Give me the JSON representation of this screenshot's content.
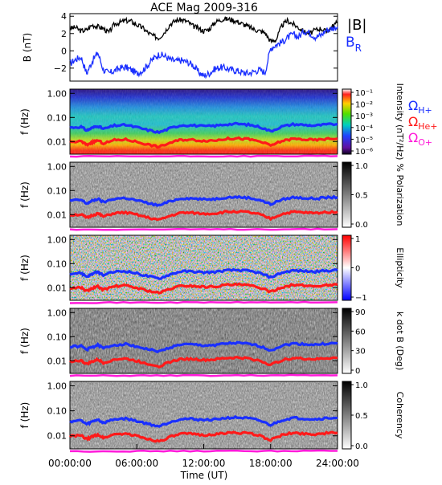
{
  "page_title": "ACE Mag 2009-316",
  "colors": {
    "btotal": "#000000",
    "bradial": "#1a2fff",
    "h_plus": "#1a2fff",
    "he_plus": "#ff1a1a",
    "o_plus": "#ff1ad9"
  },
  "chart_data": [
    {
      "type": "line",
      "panel": "b-field",
      "ylabel": "B (nT)",
      "ylim": [
        -3.5,
        4.3
      ],
      "yticks": [
        -2,
        0,
        2,
        4
      ],
      "series": [
        {
          "name": "|B|",
          "x_hours": [
            0,
            0.5,
            1,
            1.5,
            2,
            2.5,
            3,
            3.5,
            4,
            4.5,
            5,
            5.5,
            6,
            6.5,
            7,
            7.5,
            8,
            8.5,
            9,
            9.5,
            10,
            10.5,
            11,
            11.5,
            12,
            12.5,
            13,
            13.5,
            14,
            14.5,
            15,
            15.5,
            16,
            16.5,
            17,
            17.5,
            18,
            18.5,
            19,
            19.5,
            20,
            20.5,
            21,
            21.5,
            22,
            22.5,
            23,
            23.5,
            24
          ],
          "values": [
            2.6,
            2.7,
            2.3,
            2.4,
            3.0,
            2.8,
            2.6,
            2.1,
            3.1,
            3.3,
            3.5,
            3.4,
            3.0,
            2.7,
            2.1,
            1.7,
            1.5,
            2.2,
            3.1,
            3.5,
            3.6,
            3.4,
            2.9,
            2.6,
            2.3,
            2.5,
            3.3,
            3.6,
            3.7,
            3.6,
            3.4,
            3.1,
            2.8,
            2.5,
            2.3,
            2.1,
            1.1,
            1.3,
            2.9,
            3.5,
            3.1,
            2.7,
            2.2,
            2.0,
            2.4,
            2.6,
            2.2,
            2.8,
            3.3
          ]
        },
        {
          "name": "BR",
          "x_hours": [
            0,
            0.5,
            1,
            1.5,
            2,
            2.5,
            3,
            3.5,
            4,
            4.5,
            5,
            5.5,
            6,
            6.5,
            7,
            7.5,
            8,
            8.5,
            9,
            9.5,
            10,
            10.5,
            11,
            11.5,
            12,
            12.5,
            13,
            13.5,
            14,
            14.5,
            15,
            15.5,
            16,
            16.5,
            17,
            17.5,
            18,
            18.5,
            19,
            19.5,
            20,
            20.5,
            21,
            21.5,
            22,
            22.5,
            23,
            23.5,
            24
          ],
          "values": [
            -1.5,
            -1.0,
            -0.7,
            -2.6,
            -1.2,
            -0.2,
            -2.2,
            -2.6,
            -2.3,
            -2.0,
            -1.9,
            -2.2,
            -2.6,
            -2.3,
            -1.6,
            -0.9,
            -0.4,
            -0.6,
            -1.0,
            -1.2,
            -1.1,
            -1.3,
            -1.6,
            -2.4,
            -2.9,
            -2.6,
            -2.1,
            -1.9,
            -2.0,
            -2.2,
            -2.3,
            -2.5,
            -2.6,
            -2.4,
            -2.2,
            -2.5,
            0.3,
            0.7,
            1.0,
            1.5,
            1.9,
            1.6,
            2.3,
            2.1,
            1.6,
            1.8,
            2.4,
            2.6,
            2.8
          ]
        }
      ]
    },
    {
      "type": "heatmap",
      "panel": "intensity",
      "ylabel": "f (Hz)",
      "colorbar_label": "Intensity (nT²/Hz)",
      "colorbar_ticks": [
        "10⁻¹",
        "10⁻²",
        "10⁻³",
        "10⁻⁴",
        "10⁻⁵",
        "10⁻⁶"
      ]
    },
    {
      "type": "heatmap",
      "panel": "polarization",
      "ylabel": "f (Hz)",
      "colorbar_label": "% Polarization",
      "colorbar_ticks": [
        "1.0",
        "0.5",
        "0.0"
      ]
    },
    {
      "type": "heatmap",
      "panel": "ellipticity",
      "ylabel": "f (Hz)",
      "colorbar_label": "Ellipticity",
      "colorbar_ticks": [
        "1",
        "0",
        "−1"
      ]
    },
    {
      "type": "heatmap",
      "panel": "k-dot-b",
      "ylabel": "f (Hz)",
      "colorbar_label": "k dot B (Deg)",
      "colorbar_ticks": [
        "90",
        "60",
        "30",
        "0"
      ]
    },
    {
      "type": "heatmap",
      "panel": "coherency",
      "ylabel": "f (Hz)",
      "colorbar_label": "Coherency",
      "colorbar_ticks": [
        "1.0",
        "0.5",
        "0.0"
      ]
    },
    {
      "type": "line",
      "panel": "gyrofrequency-overlays",
      "ylim_hz_log": [
        0.003,
        1.5
      ],
      "ytick_labels": [
        "1.00",
        "0.10",
        "0.01"
      ],
      "ytick_values": [
        1.0,
        0.1,
        0.01
      ],
      "series": [
        {
          "name": "ΩH+",
          "x_hours": [
            0,
            1,
            1.5,
            2,
            2.5,
            3,
            4,
            5,
            6,
            7,
            8,
            9,
            10,
            11,
            12,
            13,
            14,
            15,
            16,
            17,
            18,
            19,
            20,
            21,
            22,
            23,
            24
          ],
          "values": [
            0.038,
            0.041,
            0.029,
            0.037,
            0.045,
            0.033,
            0.046,
            0.049,
            0.039,
            0.03,
            0.024,
            0.036,
            0.048,
            0.047,
            0.043,
            0.045,
            0.052,
            0.054,
            0.05,
            0.041,
            0.027,
            0.042,
            0.052,
            0.049,
            0.046,
            0.051,
            0.053
          ]
        },
        {
          "name": "ΩHe+",
          "x_hours": [
            0,
            1,
            1.5,
            2,
            2.5,
            3,
            4,
            5,
            6,
            7,
            8,
            9,
            10,
            11,
            12,
            13,
            14,
            15,
            16,
            17,
            18,
            19,
            20,
            21,
            22,
            23,
            24
          ],
          "values": [
            0.0096,
            0.0102,
            0.0073,
            0.0093,
            0.0112,
            0.0083,
            0.0115,
            0.0122,
            0.0098,
            0.0075,
            0.006,
            0.009,
            0.012,
            0.0118,
            0.0108,
            0.0112,
            0.013,
            0.0135,
            0.0125,
            0.0102,
            0.0068,
            0.0105,
            0.013,
            0.0122,
            0.0115,
            0.0128,
            0.0132
          ]
        },
        {
          "name": "ΩO+",
          "x_hours": [
            0,
            24
          ],
          "values": [
            0.0024,
            0.0025
          ]
        }
      ]
    }
  ],
  "legend": {
    "b_total": "|B|",
    "b_radial": "B",
    "b_radial_sub": "R",
    "omega_h": "Ω",
    "omega_h_sub": "H+",
    "omega_he": "Ω",
    "omega_he_sub": "He+",
    "omega_o": "Ω",
    "omega_o_sub": "O+"
  },
  "xaxis": {
    "ticks": [
      "00:00:00",
      "06:00:00",
      "12:00:00",
      "18:00:00",
      "24:00:00"
    ],
    "label": "Time (UT)"
  }
}
